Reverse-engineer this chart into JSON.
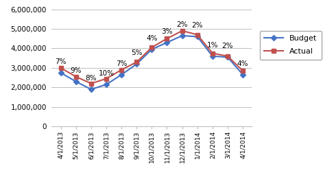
{
  "labels": [
    "4/1/2013",
    "5/1/2013",
    "6/1/2013",
    "7/1/2013",
    "8/1/2013",
    "9/1/2013",
    "10/1/2013",
    "11/1/2013",
    "12/1/2013",
    "1/1/2014",
    "2/1/2014",
    "3/1/2014",
    "4/1/2014"
  ],
  "budget": [
    2750000,
    2300000,
    1900000,
    2150000,
    2650000,
    3200000,
    3950000,
    4300000,
    4650000,
    4600000,
    3600000,
    3550000,
    2650000
  ],
  "actual": [
    3000000,
    2550000,
    2200000,
    2450000,
    2900000,
    3300000,
    4050000,
    4500000,
    4900000,
    4700000,
    3750000,
    3600000,
    2850000
  ],
  "budget_labels": [
    "7%",
    "9%",
    "8%",
    "10%",
    "7%",
    "5%",
    "4%",
    "3%",
    "2%",
    "2%",
    "1%",
    "2%",
    "4%"
  ],
  "budget_color": "#4472c4",
  "actual_color": "#c0504d",
  "legend_labels": [
    "Budget",
    "Actual"
  ],
  "ylim": [
    0,
    6000000
  ],
  "yticks": [
    0,
    1000000,
    2000000,
    3000000,
    4000000,
    5000000,
    6000000
  ],
  "background_color": "#ffffff",
  "grid_color": "#bfbfbf"
}
